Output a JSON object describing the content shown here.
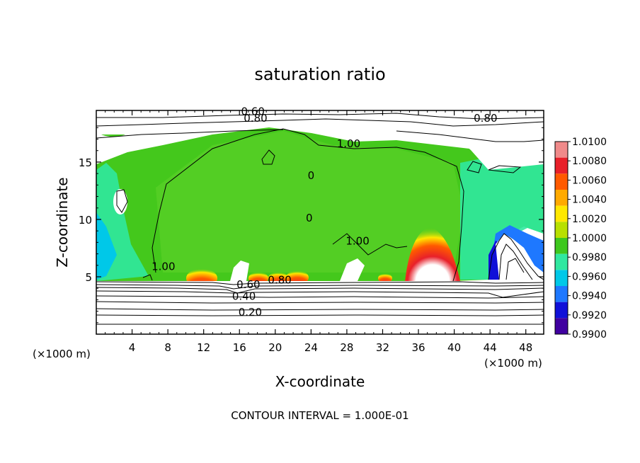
{
  "chart_data": {
    "type": "heatmap",
    "title": "saturation ratio",
    "xlabel": "X-coordinate",
    "ylabel": "Z-coordinate",
    "x_unit_left": "(×1000 m)",
    "x_unit_right": "(×1000 m)",
    "xlim": [
      0,
      50
    ],
    "ylim": [
      0,
      19.5
    ],
    "x_ticks": [
      4,
      8,
      12,
      16,
      20,
      24,
      28,
      32,
      36,
      40,
      44,
      48
    ],
    "y_ticks": [
      5,
      10,
      15
    ],
    "footer": "CONTOUR INTERVAL = 1.000E-01",
    "colorbar": {
      "labels": [
        "1.0100",
        "1.0080",
        "1.0060",
        "1.0040",
        "1.0020",
        "1.0000",
        "0.9980",
        "0.9960",
        "0.9940",
        "0.9920",
        "0.9900"
      ],
      "colors": [
        "#f08a8a",
        "#e8202a",
        "#ff5a00",
        "#ffaa00",
        "#ffe800",
        "#b8e000",
        "#3ec81e",
        "#30e8a0",
        "#00c8e8",
        "#1e78ff",
        "#1010d8",
        "#4000a0"
      ]
    },
    "contour_labels": [
      {
        "text": "0.60",
        "x": 17.5,
        "y": 19.1
      },
      {
        "text": "0.80",
        "x": 17.8,
        "y": 18.5
      },
      {
        "text": "0.80",
        "x": 43.5,
        "y": 18.5
      },
      {
        "text": "1.00",
        "x": 28.2,
        "y": 16.3
      },
      {
        "text": "1.00",
        "x": 29.2,
        "y": 7.8
      },
      {
        "text": "1.00",
        "x": 7.5,
        "y": 5.6
      },
      {
        "text": "0.60",
        "x": 17.0,
        "y": 4.0
      },
      {
        "text": "0.80",
        "x": 20.5,
        "y": 4.4
      },
      {
        "text": "0.40",
        "x": 16.5,
        "y": 3.0
      },
      {
        "text": "0.20",
        "x": 17.2,
        "y": 1.6
      },
      {
        "text": "0",
        "x": 24.0,
        "y": 13.5
      },
      {
        "text": "0",
        "x": 23.8,
        "y": 9.8
      }
    ]
  }
}
